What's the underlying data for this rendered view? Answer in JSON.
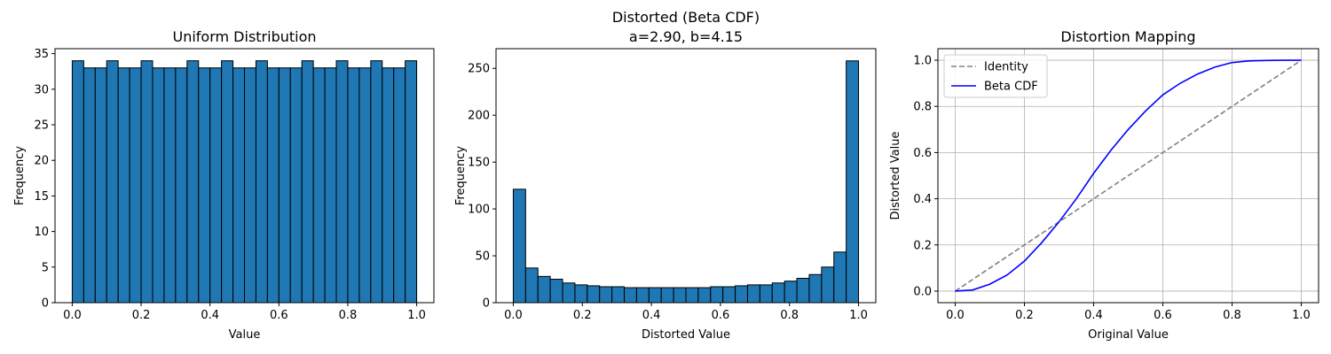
{
  "chart_data": [
    {
      "type": "bar",
      "title": "Uniform Distribution",
      "subtitle": "",
      "xlabel": "Value",
      "ylabel": "Frequency",
      "xlim": [
        -0.05,
        1.05
      ],
      "ylim": [
        0,
        35.7
      ],
      "xticks": [
        "0.0",
        "0.2",
        "0.4",
        "0.6",
        "0.8",
        "1.0"
      ],
      "yticks": [
        "0",
        "5",
        "10",
        "15",
        "20",
        "25",
        "30",
        "35"
      ],
      "bin_range": [
        0,
        1
      ],
      "bar_color": "#1f77b4",
      "edge_color": "#000000",
      "grid": false,
      "values": [
        34,
        33,
        33,
        34,
        33,
        33,
        34,
        33,
        33,
        33,
        34,
        33,
        33,
        34,
        33,
        33,
        34,
        33,
        33,
        33,
        34,
        33,
        33,
        34,
        33,
        33,
        34,
        33,
        33,
        34
      ]
    },
    {
      "type": "bar",
      "title": "Distorted (Beta CDF)",
      "subtitle": "a=2.90, b=4.15",
      "xlabel": "Distorted Value",
      "ylabel": "Frequency",
      "xlim": [
        -0.05,
        1.05
      ],
      "ylim": [
        0,
        271
      ],
      "xticks": [
        "0.0",
        "0.2",
        "0.4",
        "0.6",
        "0.8",
        "1.0"
      ],
      "yticks": [
        "0",
        "50",
        "100",
        "150",
        "200",
        "250"
      ],
      "bin_range": [
        0,
        1
      ],
      "bar_color": "#1f77b4",
      "edge_color": "#000000",
      "grid": false,
      "values": [
        121,
        37,
        28,
        25,
        21,
        19,
        18,
        17,
        17,
        16,
        16,
        16,
        16,
        16,
        16,
        16,
        17,
        17,
        18,
        19,
        19,
        21,
        23,
        26,
        30,
        38,
        54,
        258
      ]
    },
    {
      "type": "line",
      "title": "Distortion Mapping",
      "subtitle": "",
      "xlabel": "Original Value",
      "ylabel": "Distorted Value",
      "xlim": [
        -0.05,
        1.05
      ],
      "ylim": [
        -0.05,
        1.05
      ],
      "xticks": [
        "0.0",
        "0.2",
        "0.4",
        "0.6",
        "0.8",
        "1.0"
      ],
      "yticks": [
        "0.0",
        "0.2",
        "0.4",
        "0.6",
        "0.8",
        "1.0"
      ],
      "grid": true,
      "legend_position": "top-left",
      "series": [
        {
          "name": "Identity",
          "color": "#808080",
          "style": "dashed",
          "x": [
            0,
            1
          ],
          "y": [
            0,
            1
          ]
        },
        {
          "name": "Beta CDF",
          "color": "#0000ff",
          "style": "solid",
          "x": [
            0,
            0.05,
            0.1,
            0.15,
            0.2,
            0.25,
            0.3,
            0.35,
            0.4,
            0.45,
            0.5,
            0.55,
            0.6,
            0.65,
            0.7,
            0.75,
            0.8,
            0.85,
            0.9,
            0.95,
            1.0
          ],
          "y": [
            0,
            0.005,
            0.03,
            0.07,
            0.13,
            0.21,
            0.3,
            0.4,
            0.51,
            0.61,
            0.7,
            0.78,
            0.85,
            0.9,
            0.94,
            0.97,
            0.99,
            0.997,
            0.999,
            1.0,
            1.0
          ]
        }
      ]
    }
  ]
}
